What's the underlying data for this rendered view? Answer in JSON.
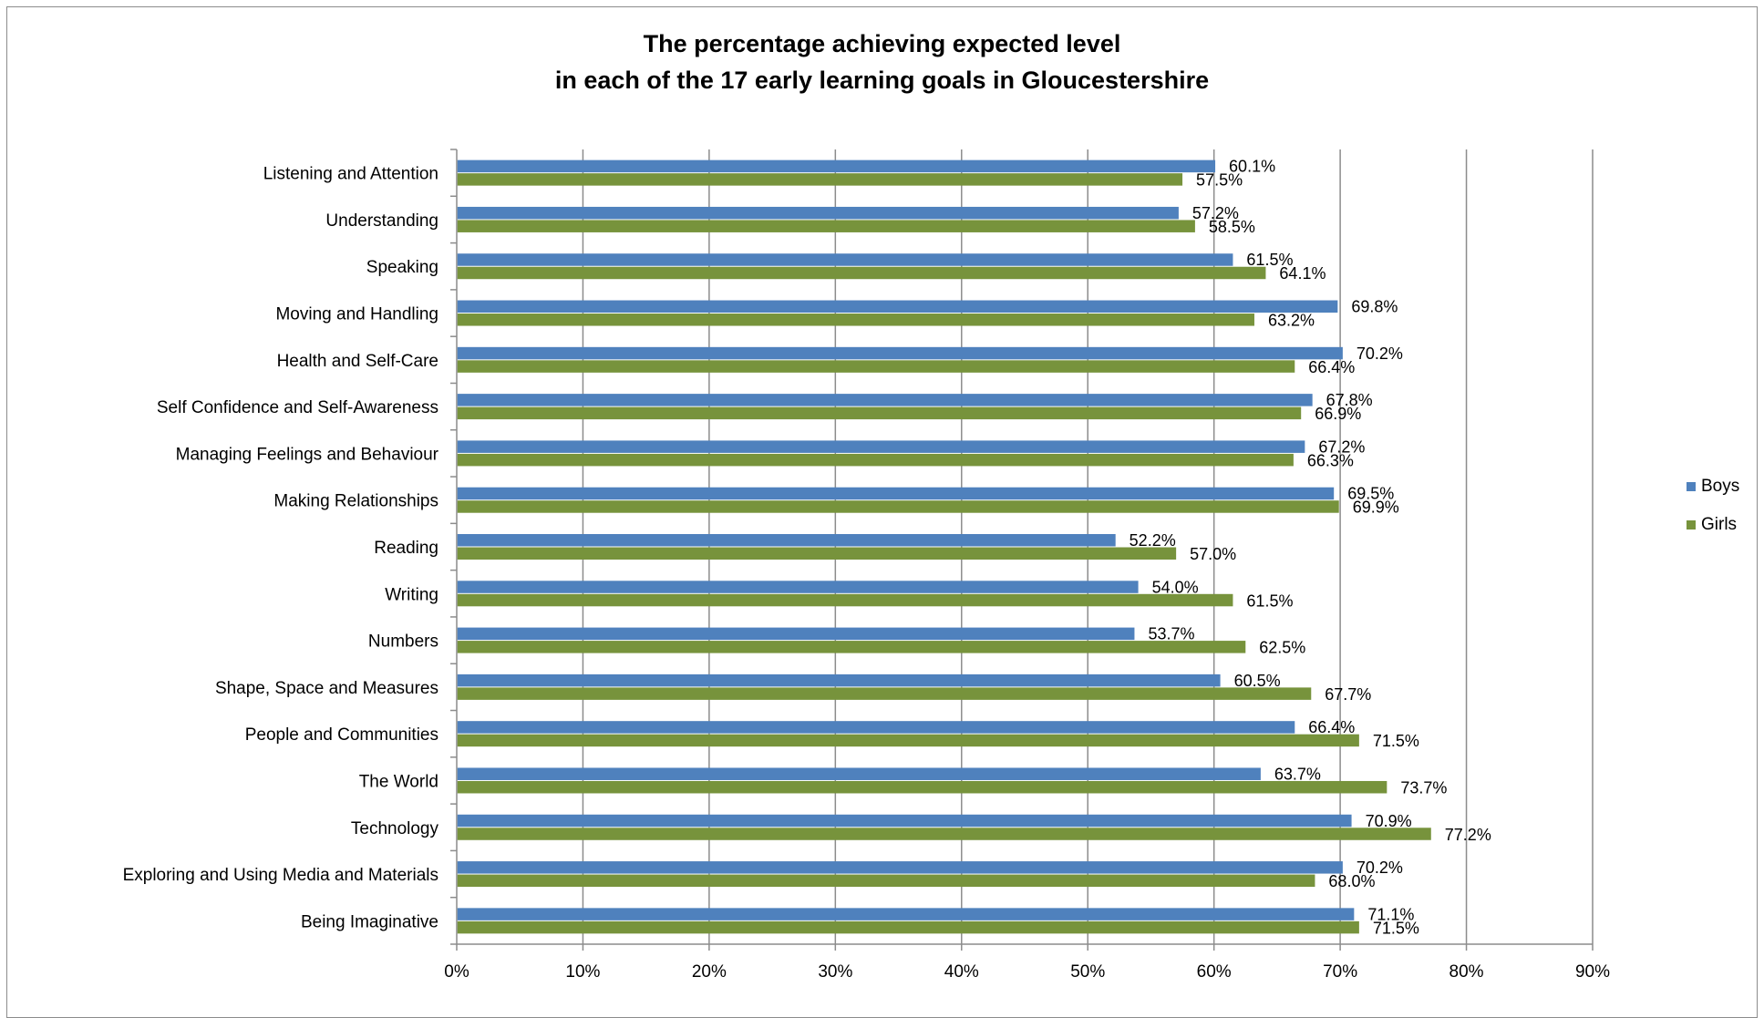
{
  "chart_data": {
    "type": "bar",
    "orientation": "horizontal",
    "title_line1": "The percentage achieving expected level",
    "title_line2": "in each of the 17 early learning goals in Gloucestershire",
    "xlabel": "",
    "ylabel": "",
    "xlim": [
      0,
      90
    ],
    "x_ticks": [
      "0%",
      "10%",
      "20%",
      "30%",
      "40%",
      "50%",
      "60%",
      "70%",
      "80%",
      "90%"
    ],
    "grid": "vertical",
    "legend_placement": "right",
    "categories": [
      "Listening and Attention",
      "Understanding",
      "Speaking",
      "Moving and Handling",
      "Health and Self-Care",
      "Self Confidence and Self-Awareness",
      "Managing Feelings and Behaviour",
      "Making Relationships",
      "Reading",
      "Writing",
      "Numbers",
      "Shape, Space and Measures",
      "People and Communities",
      "The World",
      "Technology",
      "Exploring and Using Media and Materials",
      "Being Imaginative"
    ],
    "series": [
      {
        "name": "Boys",
        "color": "#4f81bd",
        "values": [
          60.1,
          57.2,
          61.5,
          69.8,
          70.2,
          67.8,
          67.2,
          69.5,
          52.2,
          54.0,
          53.7,
          60.5,
          66.4,
          63.7,
          70.9,
          70.2,
          71.1
        ],
        "labels": [
          "60.1%",
          "57.2%",
          "61.5%",
          "69.8%",
          "70.2%",
          "67.8%",
          "67.2%",
          "69.5%",
          "52.2%",
          "54.0%",
          "53.7%",
          "60.5%",
          "66.4%",
          "63.7%",
          "70.9%",
          "70.2%",
          "71.1%"
        ]
      },
      {
        "name": "Girls",
        "color": "#77933c",
        "values": [
          57.5,
          58.5,
          64.1,
          63.2,
          66.4,
          66.9,
          66.3,
          69.9,
          57.0,
          61.5,
          62.5,
          67.7,
          71.5,
          73.7,
          77.2,
          68.0,
          71.5
        ],
        "labels": [
          "57.5%",
          "58.5%",
          "64.1%",
          "63.2%",
          "66.4%",
          "66.9%",
          "66.3%",
          "69.9%",
          "57.0%",
          "61.5%",
          "62.5%",
          "67.7%",
          "71.5%",
          "73.7%",
          "77.2%",
          "68.0%",
          "71.5%"
        ]
      }
    ]
  }
}
